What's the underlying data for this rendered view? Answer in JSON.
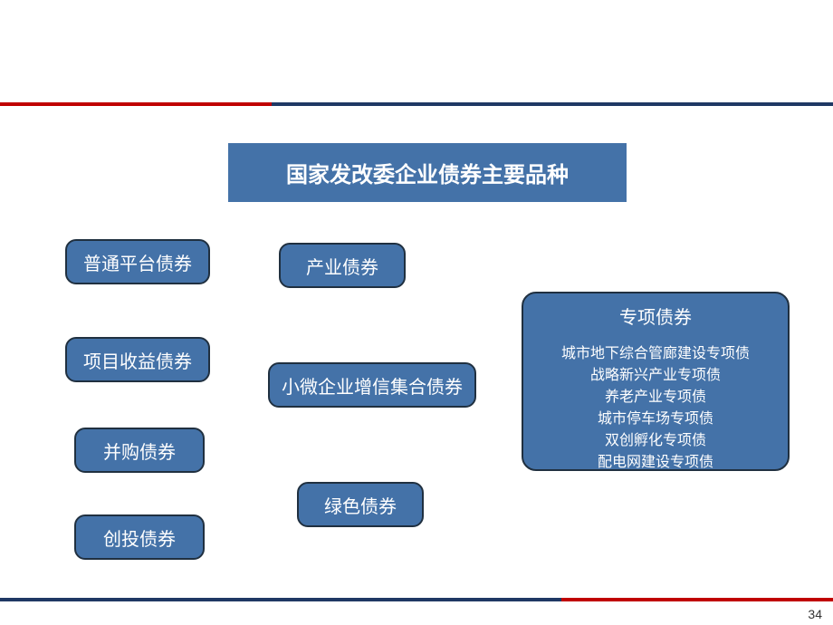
{
  "title": "国家发改委企业债券主要品种",
  "boxes": {
    "b1": "普通平台债券",
    "b2": "项目收益债券",
    "b3": "并购债券",
    "b4": "创投债券",
    "b5": "产业债券",
    "b6": "小微企业增信集合债券",
    "b7": "绿色债券"
  },
  "special": {
    "title": "专项债券",
    "items": {
      "i1": "城市地下综合管廊建设专项债",
      "i2": "战略新兴产业专项债",
      "i3": "养老产业专项债",
      "i4": "城市停车场专项债",
      "i5": "双创孵化专项债",
      "i6": "配电网建设专项债"
    }
  },
  "page_number": "34",
  "colors": {
    "box_fill": "#4472a8",
    "box_border": "#203040",
    "top_red": "#c00000",
    "top_blue": "#1f3864",
    "text": "#ffffff",
    "background": "#ffffff"
  },
  "type": "infographic"
}
